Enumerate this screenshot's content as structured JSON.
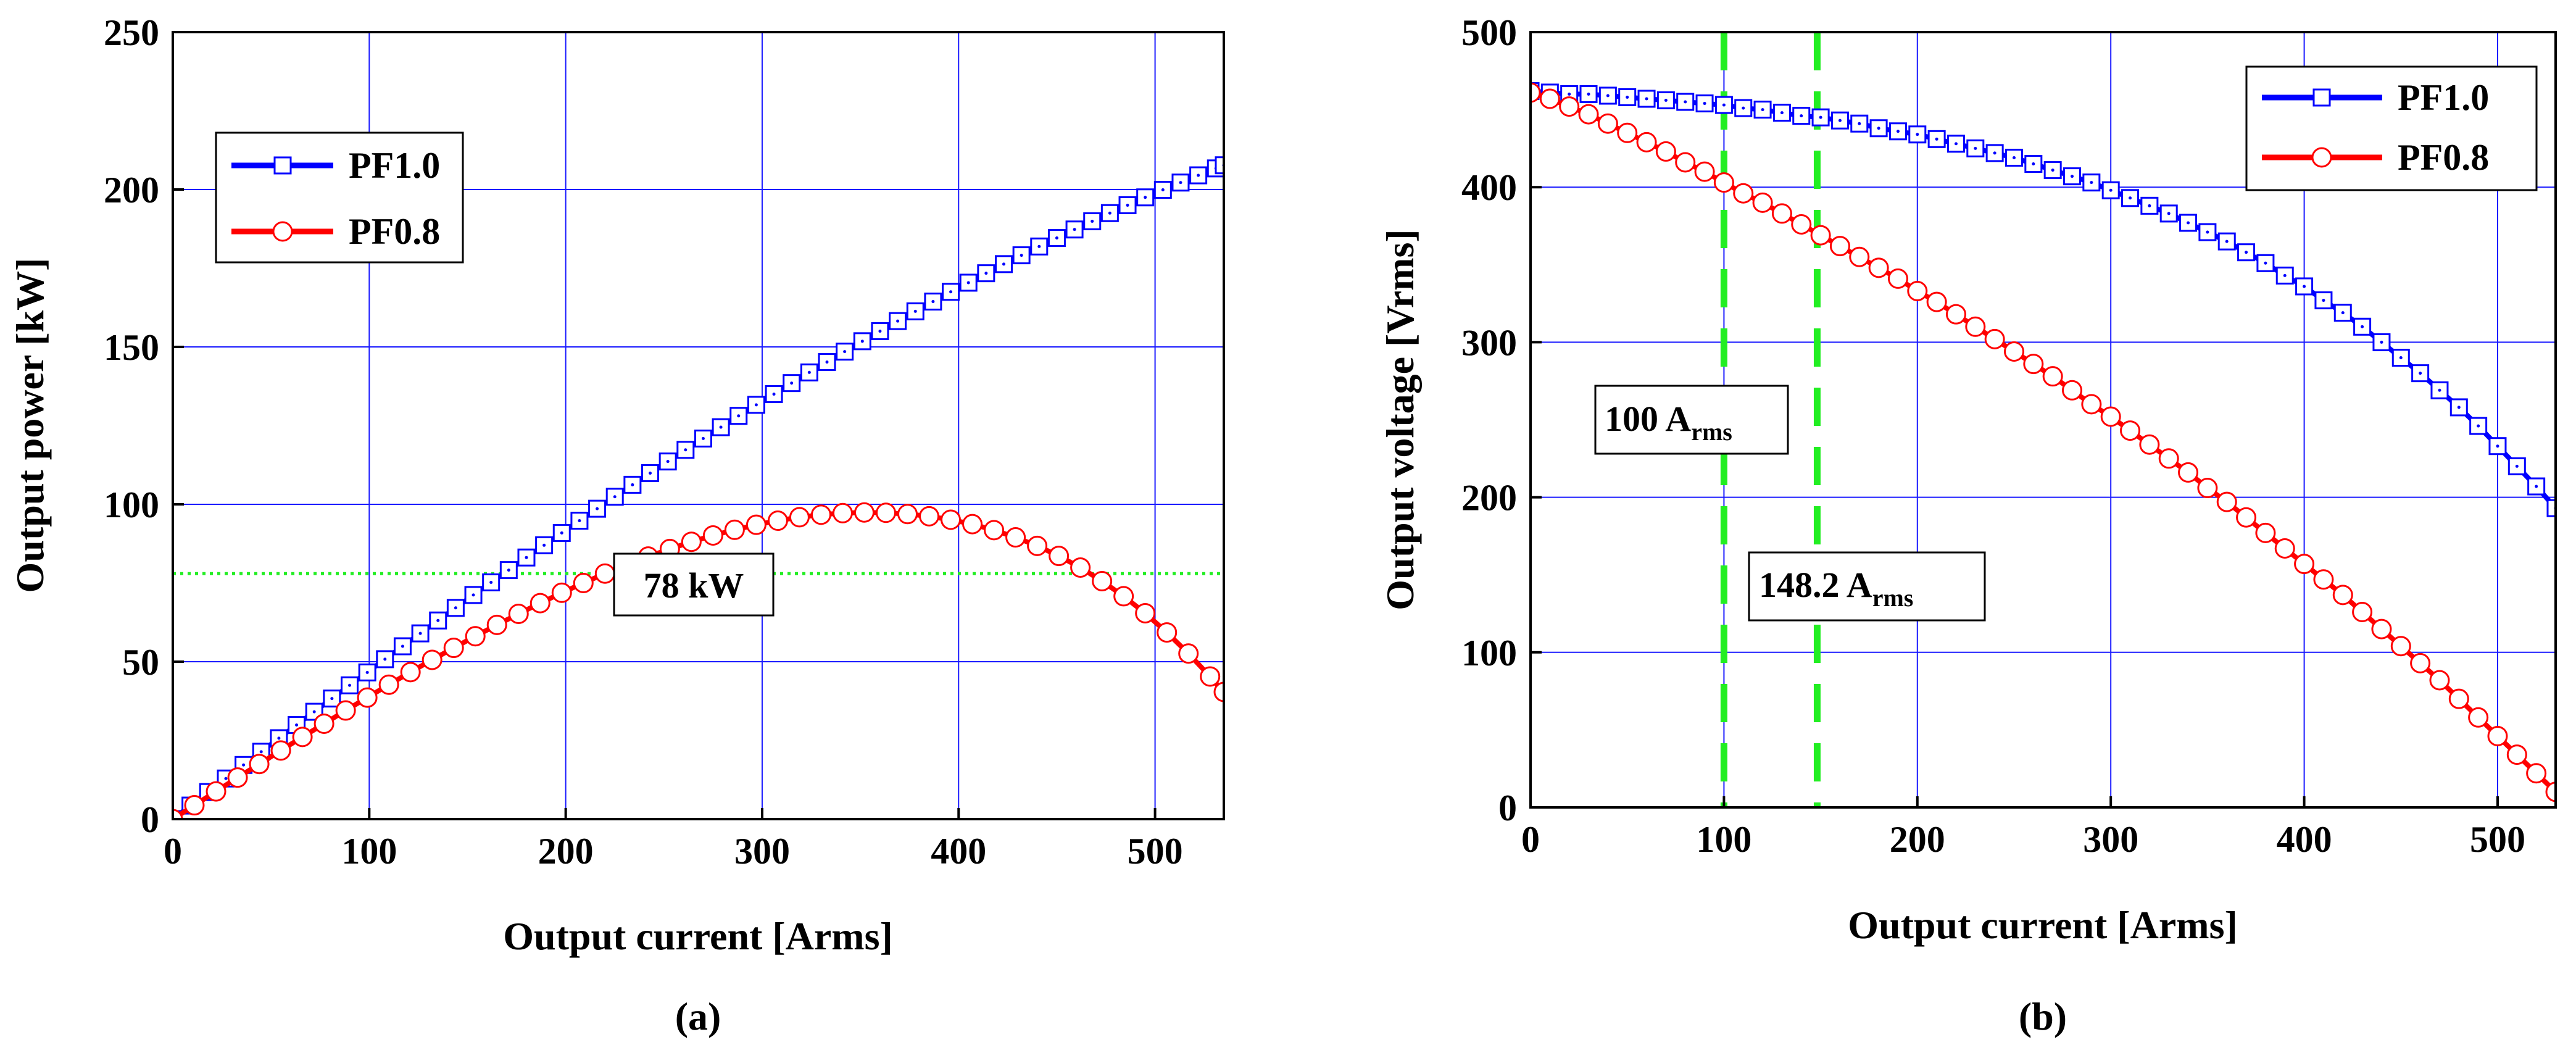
{
  "chart_data": [
    {
      "panel_label": "(a)",
      "type": "line",
      "xlabel": "Output current [Arms]",
      "ylabel": "Output power [kW]",
      "xlim": [
        0,
        535
      ],
      "ylim": [
        0,
        250
      ],
      "xticks": [
        0,
        100,
        200,
        300,
        400,
        500
      ],
      "yticks": [
        0,
        50,
        100,
        150,
        200,
        250
      ],
      "grid": true,
      "legend_position": "upper-left",
      "series": [
        {
          "name": "PF1.0",
          "color": "#0000ff",
          "marker": "square",
          "x": [
            0,
            9,
            18,
            27,
            36,
            45,
            54,
            63,
            72,
            81,
            90,
            99,
            108,
            117,
            126,
            135,
            144,
            153,
            162,
            171,
            180,
            189,
            198,
            207,
            216,
            225,
            234,
            243,
            252,
            261,
            270,
            279,
            288,
            297,
            306,
            315,
            324,
            333,
            342,
            351,
            360,
            369,
            378,
            387,
            396,
            405,
            414,
            423,
            432,
            441,
            450,
            459,
            468,
            477,
            486,
            495,
            504,
            513,
            522,
            531,
            535
          ],
          "y": [
            0,
            4.3,
            8.6,
            12.9,
            17.2,
            21.4,
            25.7,
            29.9,
            34.1,
            38.3,
            42.5,
            46.6,
            50.8,
            54.9,
            59.0,
            63.1,
            67.1,
            71.2,
            75.2,
            79.1,
            83.1,
            87.0,
            90.9,
            94.8,
            98.6,
            102.4,
            106.2,
            109.9,
            113.6,
            117.3,
            120.9,
            124.5,
            128.1,
            131.6,
            135.0,
            138.5,
            141.9,
            145.2,
            148.5,
            151.8,
            155.0,
            158.2,
            161.3,
            164.4,
            167.5,
            170.4,
            173.4,
            176.3,
            179.1,
            181.9,
            184.6,
            187.3,
            189.9,
            192.5,
            195.0,
            197.5,
            199.9,
            202.2,
            204.5,
            206.7,
            207.7
          ]
        },
        {
          "name": "PF0.8",
          "color": "#ff0000",
          "marker": "circle",
          "x": [
            0,
            11,
            22,
            33,
            44,
            55,
            66,
            77,
            88,
            99,
            110,
            121,
            132,
            143,
            154,
            165,
            176,
            187,
            198,
            209,
            220,
            231,
            242,
            253,
            264,
            275,
            286,
            297,
            308,
            319,
            330,
            341,
            352,
            363,
            374,
            385,
            396,
            407,
            418,
            429,
            440,
            451,
            462,
            473,
            484,
            495,
            506,
            517,
            528,
            535
          ],
          "y": [
            0,
            4.4,
            8.8,
            13.2,
            17.5,
            21.8,
            26.1,
            30.3,
            34.5,
            38.6,
            42.7,
            46.7,
            50.6,
            54.4,
            58.1,
            61.7,
            65.2,
            68.6,
            71.9,
            75.0,
            78.0,
            80.8,
            83.4,
            85.8,
            88.1,
            90.1,
            91.9,
            93.5,
            94.8,
            95.9,
            96.7,
            97.2,
            97.4,
            97.3,
            96.9,
            96.2,
            95.1,
            93.7,
            91.8,
            89.5,
            86.8,
            83.6,
            79.9,
            75.6,
            70.8,
            65.4,
            59.3,
            52.6,
            45.3,
            40.4
          ]
        }
      ],
      "annotations": [
        {
          "text": "78 kW",
          "y_value": 78,
          "style": "dotted-green-horizontal"
        }
      ]
    },
    {
      "panel_label": "(b)",
      "type": "line",
      "xlabel": "Output current [Arms]",
      "ylabel": "Output voltage [Vrms]",
      "xlim": [
        0,
        530
      ],
      "ylim": [
        0,
        500
      ],
      "xticks": [
        0,
        100,
        200,
        300,
        400,
        500
      ],
      "yticks": [
        0,
        100,
        200,
        300,
        400,
        500
      ],
      "grid": true,
      "legend_position": "upper-right",
      "series": [
        {
          "name": "PF1.0",
          "color": "#0000ff",
          "marker": "square",
          "x": [
            0,
            10,
            20,
            30,
            40,
            50,
            60,
            70,
            80,
            90,
            100,
            110,
            120,
            130,
            140,
            150,
            160,
            170,
            180,
            190,
            200,
            210,
            220,
            230,
            240,
            250,
            260,
            270,
            280,
            290,
            300,
            310,
            320,
            330,
            340,
            350,
            360,
            370,
            380,
            390,
            400,
            410,
            420,
            430,
            440,
            450,
            460,
            470,
            480,
            490,
            500,
            510,
            520,
            530
          ],
          "y": [
            462,
            461,
            460,
            460,
            459,
            458,
            457,
            456,
            455,
            454,
            453,
            451,
            450,
            448,
            446,
            445,
            443,
            441,
            438,
            436,
            434,
            431,
            428,
            425,
            422,
            419,
            415,
            411,
            407,
            403,
            398,
            393,
            388,
            383,
            377,
            371,
            365,
            358,
            351,
            343,
            336,
            327,
            319,
            310,
            300,
            290,
            280,
            269,
            258,
            246,
            233,
            220,
            207,
            193
          ]
        },
        {
          "name": "PF0.8",
          "color": "#ff0000",
          "marker": "circle",
          "x": [
            0,
            10,
            20,
            30,
            40,
            50,
            60,
            70,
            80,
            90,
            100,
            110,
            120,
            130,
            140,
            150,
            160,
            170,
            180,
            190,
            200,
            210,
            220,
            230,
            240,
            250,
            260,
            270,
            280,
            290,
            300,
            310,
            320,
            330,
            340,
            350,
            360,
            370,
            380,
            390,
            400,
            410,
            420,
            430,
            440,
            450,
            460,
            470,
            480,
            490,
            500,
            510,
            520,
            530
          ],
          "y": [
            461,
            457,
            452,
            447,
            441,
            435,
            429,
            423,
            416,
            410,
            403,
            396,
            390,
            383,
            376,
            369,
            362,
            355,
            348,
            341,
            333,
            326,
            318,
            310,
            302,
            294,
            286,
            278,
            269,
            260,
            252,
            243,
            234,
            225,
            216,
            206,
            197,
            187,
            177,
            167,
            157,
            147,
            137,
            126,
            115,
            104,
            93,
            82,
            70,
            58,
            46,
            34,
            22,
            10
          ]
        }
      ],
      "annotations": [
        {
          "text": "100 A",
          "subscript": "rms",
          "x_value": 100,
          "style": "dashed-green-vertical"
        },
        {
          "text": "148.2 A",
          "subscript": "rms",
          "x_value": 148.2,
          "style": "dashed-green-vertical"
        }
      ]
    }
  ]
}
